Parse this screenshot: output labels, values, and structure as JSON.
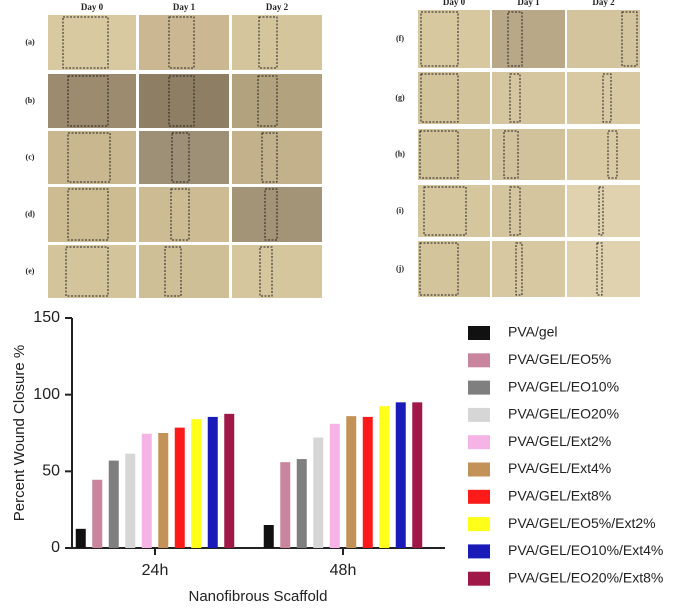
{
  "panels": {
    "left": {
      "columns": [
        "Day 0",
        "Day 1",
        "Day 2"
      ],
      "rows": [
        "(a)",
        "(b)",
        "(c)",
        "(d)",
        "(e)"
      ]
    },
    "right": {
      "columns": [
        "Day 0",
        "Day 1",
        "Day 2"
      ],
      "rows": [
        "(f)",
        "(g)",
        "(h)",
        "(i)",
        "(j)"
      ]
    }
  },
  "chart_data": {
    "type": "bar",
    "ylabel": "Percent Wound Closure %",
    "xlabel": "Nanofibrous Scaffold",
    "categories": [
      "24h",
      "48h"
    ],
    "series": [
      {
        "name": "PVA/gel",
        "color": "#111111",
        "values": [
          12.5,
          15
        ]
      },
      {
        "name": "PVA/GEL/EO5%",
        "color": "#c9859e",
        "values": [
          44.5,
          56
        ]
      },
      {
        "name": "PVA/GEL/EO10%",
        "color": "#7f7f7f",
        "values": [
          57,
          58
        ]
      },
      {
        "name": "PVA/GEL/EO20%",
        "color": "#d6d6d6",
        "values": [
          61.5,
          72
        ]
      },
      {
        "name": "PVA/GEL/Ext2%",
        "color": "#f5b3e6",
        "values": [
          74.5,
          81
        ]
      },
      {
        "name": "PVA/GEL/Ext4%",
        "color": "#c39259",
        "values": [
          75,
          86
        ]
      },
      {
        "name": "PVA/GEL/Ext8%",
        "color": "#ff1a1a",
        "values": [
          78.5,
          85.5
        ]
      },
      {
        "name": "PVA/GEL/EO5%/Ext2%",
        "color": "#ffff1a",
        "values": [
          84,
          92.5
        ]
      },
      {
        "name": "PVA/GEL/EO10%/Ext4%",
        "color": "#1a1ab8",
        "values": [
          85.5,
          95
        ]
      },
      {
        "name": "PVA/GEL/EO20%/Ext8%",
        "color": "#a01848",
        "values": [
          87.5,
          95
        ]
      }
    ],
    "ylim": [
      0,
      150
    ],
    "yticks": [
      0,
      50,
      100,
      150
    ]
  }
}
